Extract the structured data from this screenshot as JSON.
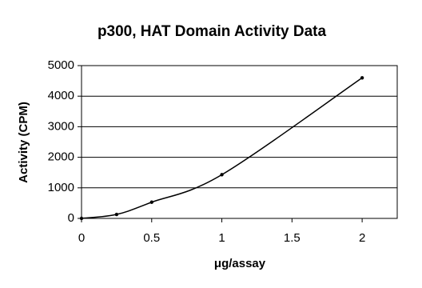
{
  "chart_data": {
    "type": "line",
    "title": "p300, HAT Domain Activity Data",
    "x_label": "μg/assay",
    "y_label": "Activity (CPM)",
    "x": [
      0,
      0.25,
      0.5,
      1,
      2
    ],
    "series": [
      {
        "name": "Activity",
        "color": "#000000",
        "values": [
          0,
          130,
          530,
          1430,
          4600
        ]
      }
    ],
    "xlim": [
      0,
      2.25
    ],
    "xticks": [
      0,
      0.5,
      1,
      1.5,
      2
    ],
    "ylim": [
      0,
      5000
    ],
    "yticks": [
      0,
      1000,
      2000,
      3000,
      4000,
      5000
    ],
    "grid": true,
    "smooth": true
  }
}
